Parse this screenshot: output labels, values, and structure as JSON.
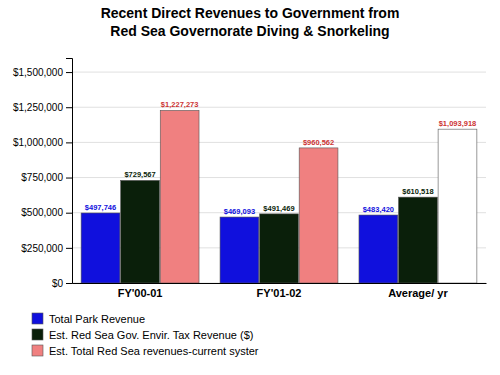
{
  "chart_data": {
    "type": "bar",
    "title": "Recent Direct Revenues to Government from",
    "subtitle": "Red Sea Governorate Diving & Snorkeling",
    "categories": [
      "FY'00-01",
      "FY'01-02",
      "Average/ yr"
    ],
    "series": [
      {
        "name": "Total Park Revenue",
        "color": "#1010dd",
        "values": [
          497746,
          469093,
          483420
        ],
        "value_labels": [
          "$497,746",
          "$469,093",
          "$483,420"
        ]
      },
      {
        "name": "Est. Red Sea Gov. Envir. Tax Revenue ($)",
        "color": "#0a1f0a",
        "values": [
          729567,
          491469,
          610518
        ],
        "value_labels": [
          "$729,567",
          "$491,469",
          "$610,518"
        ]
      },
      {
        "name": "Est. Total Red Sea revenues-current syster",
        "color": "#f08080",
        "colors": [
          "#f08080",
          "#f08080",
          "#ffffff"
        ],
        "values": [
          1227273,
          960562,
          1093918
        ],
        "value_labels": [
          "$1,227,273",
          "$960,562",
          "$1,093,918"
        ]
      }
    ],
    "ylim": [
      0,
      1600000
    ],
    "yticks": [
      {
        "value": 0,
        "label": "$0"
      },
      {
        "value": 250000,
        "label": "$250,000"
      },
      {
        "value": 500000,
        "label": "$500,000"
      },
      {
        "value": 750000,
        "label": "$750,000"
      },
      {
        "value": 1000000,
        "label": "$1,000,000"
      },
      {
        "value": 1250000,
        "label": "$1,250,000"
      },
      {
        "value": 1500000,
        "label": "$1,500,000"
      }
    ],
    "grid": true,
    "data_labels": true,
    "legend": "bottom"
  }
}
